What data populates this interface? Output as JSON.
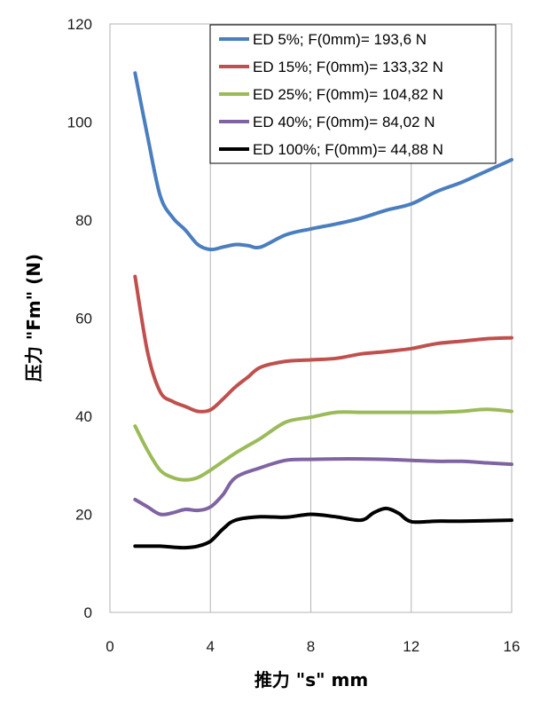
{
  "chart_data": {
    "type": "line",
    "title": "",
    "xlabel": "推力 \"s\" mm",
    "ylabel": "压力 \"Fm\" (N)",
    "xlim": [
      0,
      16
    ],
    "ylim": [
      0,
      120
    ],
    "x_ticks": [
      "0",
      "4",
      "8",
      "12",
      "16"
    ],
    "y_ticks": [
      "0",
      "20",
      "40",
      "60",
      "80",
      "100",
      "120"
    ],
    "grid": "vertical",
    "legend_position": "top-right",
    "series": [
      {
        "name": "ED 5%; F(0mm)= 193,6 N",
        "color": "#4a7ebf",
        "x": [
          1,
          1.5,
          2,
          2.5,
          3,
          3.5,
          4,
          4.5,
          5,
          5.5,
          6,
          7,
          8,
          9,
          10,
          11,
          12,
          13,
          14,
          15,
          16
        ],
        "y": [
          110,
          97,
          85,
          80.5,
          78,
          75,
          74,
          74.5,
          75,
          74.8,
          74.5,
          77,
          78.2,
          79.2,
          80.4,
          82,
          83.3,
          85.8,
          87.7,
          90,
          92.3
        ]
      },
      {
        "name": "ED 15%; F(0mm)= 133,32 N",
        "color": "#c0504d",
        "x": [
          1,
          1.5,
          2,
          2.5,
          3,
          3.5,
          4,
          4.5,
          5,
          5.5,
          6,
          7,
          8,
          9,
          10,
          11,
          12,
          13,
          14,
          15,
          16
        ],
        "y": [
          68.5,
          53,
          45,
          43,
          42,
          41,
          41.3,
          43.5,
          46,
          48,
          50,
          51.2,
          51.5,
          51.8,
          52.7,
          53.2,
          53.8,
          54.8,
          55.3,
          55.8,
          56
        ]
      },
      {
        "name": "ED 25%; F(0mm)= 104,82 N",
        "color": "#9bbb59",
        "x": [
          1,
          1.5,
          2,
          2.5,
          3,
          3.5,
          4,
          5,
          6,
          7,
          8,
          9,
          10,
          11,
          12,
          13,
          14,
          15,
          16
        ],
        "y": [
          38,
          33,
          29,
          27.5,
          27,
          27.5,
          29,
          32.5,
          35.5,
          38.8,
          39.8,
          40.8,
          40.8,
          40.8,
          40.8,
          40.8,
          41,
          41.4,
          41
        ]
      },
      {
        "name": "ED 40%; F(0mm)= 84,02 N",
        "color": "#8064a2",
        "x": [
          1,
          1.5,
          2,
          2.5,
          3,
          3.5,
          4,
          4.5,
          5,
          6,
          7,
          8,
          9,
          10,
          11,
          12,
          13,
          14,
          15,
          16
        ],
        "y": [
          23,
          21.5,
          20,
          20.3,
          21,
          20.8,
          21.5,
          24,
          27.5,
          29.5,
          31,
          31.2,
          31.3,
          31.3,
          31.2,
          31,
          30.8,
          30.8,
          30.5,
          30.2
        ]
      },
      {
        "name": "ED 100%; F(0mm)= 44,88 N",
        "color": "#000000",
        "x": [
          1,
          1.5,
          2,
          2.5,
          3,
          3.5,
          4,
          4.5,
          5,
          6,
          7,
          8,
          9,
          10,
          10.5,
          11,
          11.5,
          12,
          13,
          14,
          15,
          16
        ],
        "y": [
          13.5,
          13.5,
          13.5,
          13.3,
          13.2,
          13.5,
          14.5,
          17,
          18.8,
          19.5,
          19.4,
          20,
          19.5,
          18.8,
          20.3,
          21.2,
          20.2,
          18.5,
          18.6,
          18.6,
          18.7,
          18.8
        ]
      }
    ]
  }
}
